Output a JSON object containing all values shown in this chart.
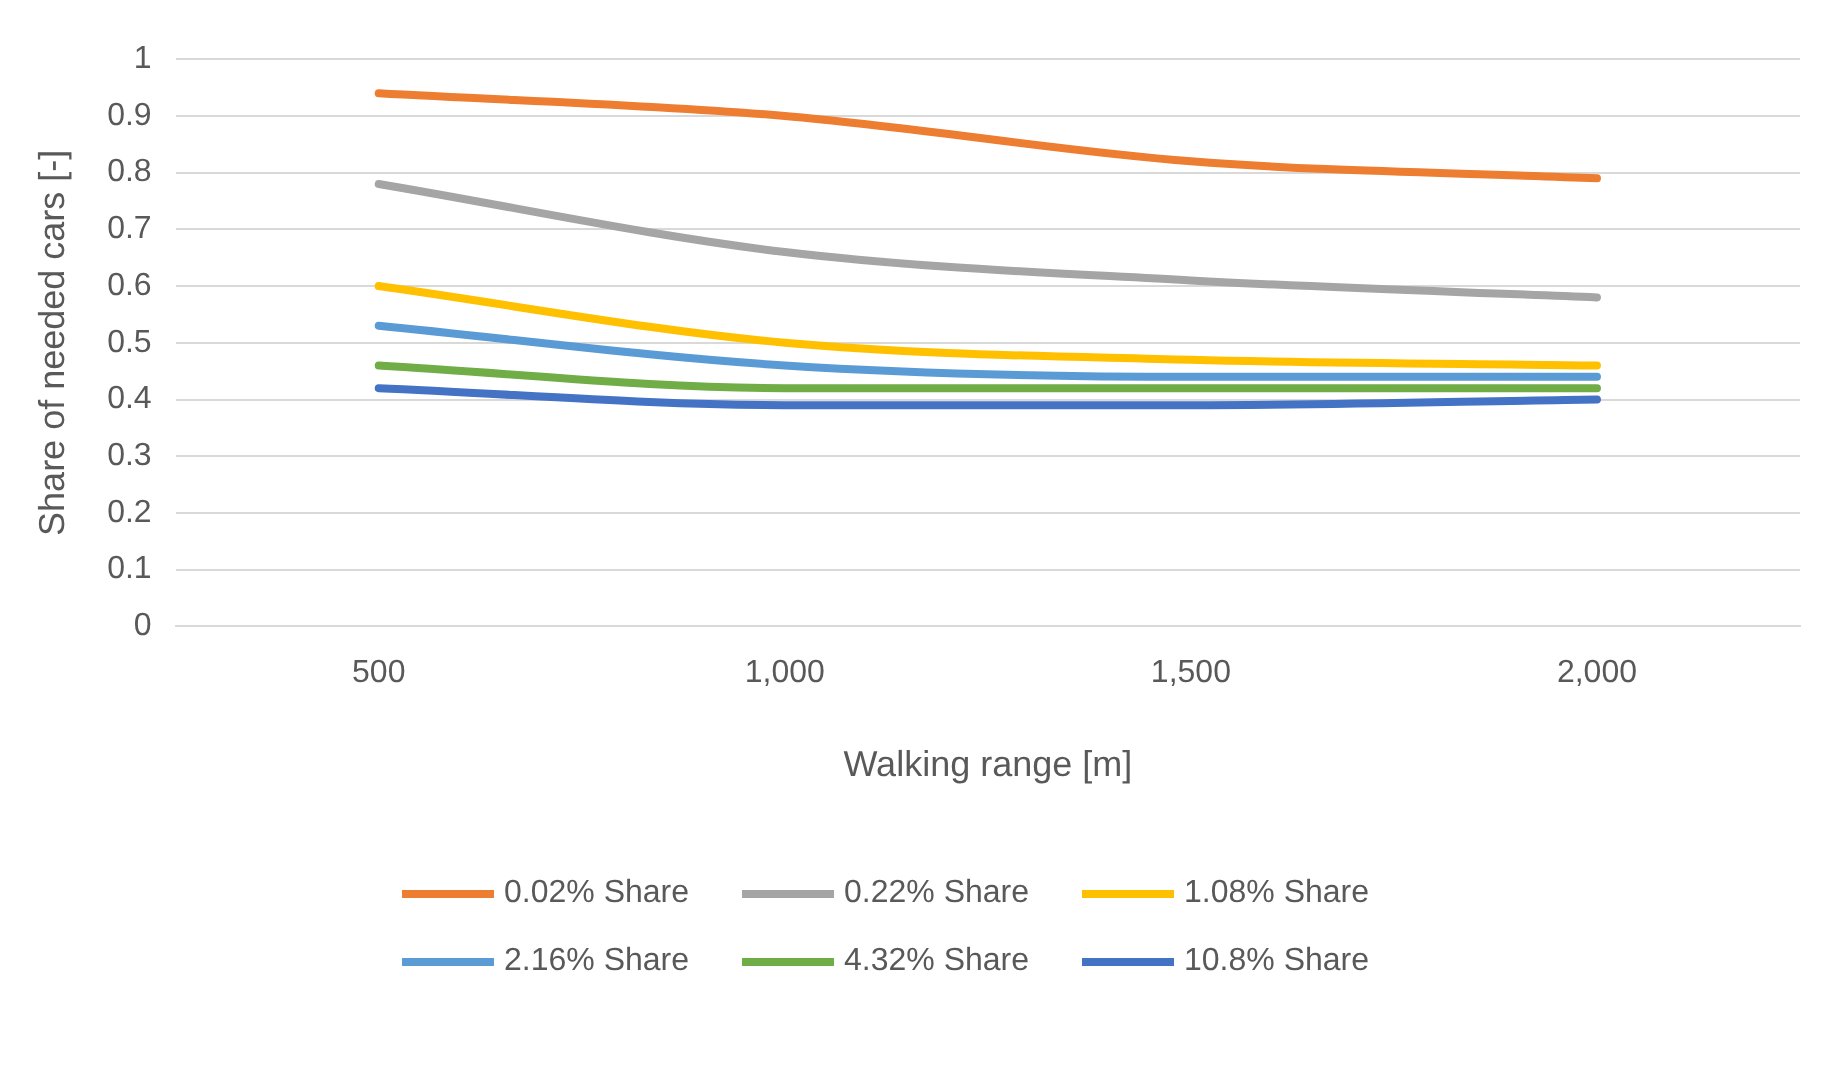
{
  "chart_data": {
    "type": "line",
    "xlabel": "Walking range [m]",
    "ylabel": "Share of needed cars [-]",
    "categories": [
      "500",
      "1,000",
      "1,500",
      "2,000"
    ],
    "series": [
      {
        "name": "0.02% Share",
        "color": "#ed7d31",
        "values": [
          0.94,
          0.9,
          0.82,
          0.79
        ]
      },
      {
        "name": "0.22% Share",
        "color": "#a5a5a5",
        "values": [
          0.78,
          0.66,
          0.61,
          0.58
        ]
      },
      {
        "name": "1.08% Share",
        "color": "#ffc000",
        "values": [
          0.6,
          0.5,
          0.47,
          0.46
        ]
      },
      {
        "name": "2.16% Share",
        "color": "#5b9bd5",
        "values": [
          0.53,
          0.46,
          0.44,
          0.44
        ]
      },
      {
        "name": "4.32% Share",
        "color": "#70ad47",
        "values": [
          0.46,
          0.42,
          0.42,
          0.42
        ]
      },
      {
        "name": "10.8% Share",
        "color": "#4472c4",
        "values": [
          0.42,
          0.39,
          0.39,
          0.4
        ]
      }
    ],
    "ylim": [
      0,
      1
    ],
    "yticks": [
      0,
      0.1,
      0.2,
      0.3,
      0.4,
      0.5,
      0.6,
      0.7,
      0.8,
      0.9,
      1
    ],
    "grid": "y",
    "legend": "bottom",
    "marker": "none",
    "line_style": "solid"
  }
}
